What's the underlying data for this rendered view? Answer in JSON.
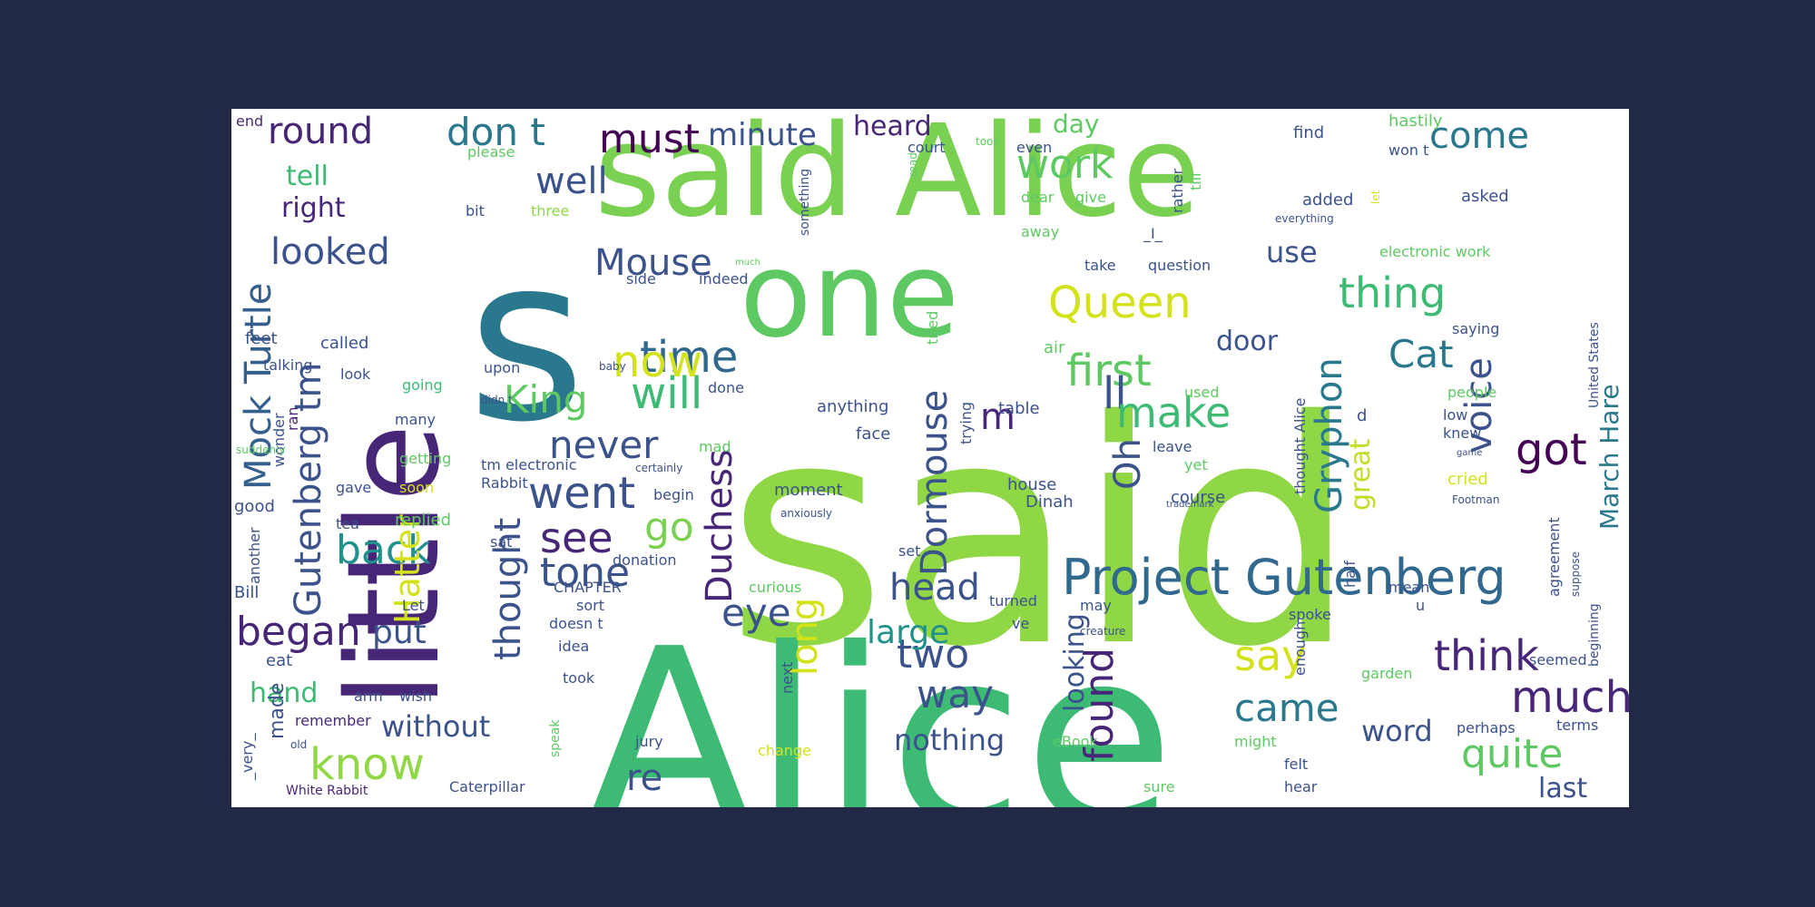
{
  "colors": {
    "background": "#222946",
    "panel": "#ffffff",
    "palette": [
      "#440154",
      "#3b528b",
      "#21918c",
      "#2a788e",
      "#5ec962",
      "#3dbb74",
      "#7ad151",
      "#8fd744",
      "#fde725",
      "#d4e21a"
    ]
  },
  "words": [
    {
      "text": "said",
      "color": "#8fd744"
    },
    {
      "text": "Alice",
      "color": "#3dbb74"
    },
    {
      "text": "said Alice",
      "color": "#7ad151"
    },
    {
      "text": "s",
      "color": "#2a788e"
    },
    {
      "text": "little",
      "color": "#482677"
    },
    {
      "text": "one",
      "color": "#5ec962"
    },
    {
      "text": "Project Gutenberg",
      "color": "#31688e"
    },
    {
      "text": "Gutenberg tm",
      "color": "#3b528b"
    },
    {
      "text": "Mock Turtle",
      "color": "#355f8d"
    },
    {
      "text": "Queen",
      "color": "#d4e21a"
    },
    {
      "text": "thing",
      "color": "#3dbb74"
    },
    {
      "text": "first",
      "color": "#5ec962"
    },
    {
      "text": "time",
      "color": "#31688e"
    },
    {
      "text": "Cat",
      "color": "#2a788e"
    },
    {
      "text": "Mouse",
      "color": "#3b528b"
    },
    {
      "text": "round",
      "color": "#482677"
    },
    {
      "text": "don t",
      "color": "#2a788e"
    },
    {
      "text": "must",
      "color": "#440154"
    },
    {
      "text": "minute",
      "color": "#3b528b"
    },
    {
      "text": "heard",
      "color": "#482677"
    },
    {
      "text": "come",
      "color": "#2a788e"
    },
    {
      "text": "work",
      "color": "#5ec962"
    },
    {
      "text": "day",
      "color": "#5ec962"
    },
    {
      "text": "well",
      "color": "#3b528b"
    },
    {
      "text": "looked",
      "color": "#3b528b"
    },
    {
      "text": "tell",
      "color": "#3dbb74"
    },
    {
      "text": "right",
      "color": "#482677"
    },
    {
      "text": "will",
      "color": "#3dbb74"
    },
    {
      "text": "now",
      "color": "#d4e21a"
    },
    {
      "text": "King",
      "color": "#5ec962"
    },
    {
      "text": "never",
      "color": "#3b528b"
    },
    {
      "text": "went",
      "color": "#3b528b"
    },
    {
      "text": "see",
      "color": "#482677"
    },
    {
      "text": "go",
      "color": "#7ad151"
    },
    {
      "text": "back",
      "color": "#21918c"
    },
    {
      "text": "tone",
      "color": "#3b528b"
    },
    {
      "text": "Duchess",
      "color": "#482677"
    },
    {
      "text": "Dormouse",
      "color": "#3b528b"
    },
    {
      "text": "ll",
      "color": "#3b528b"
    },
    {
      "text": "make",
      "color": "#3dbb74"
    },
    {
      "text": "Oh",
      "color": "#3b528b"
    },
    {
      "text": "m",
      "color": "#482677"
    },
    {
      "text": "Gryphon",
      "color": "#2a788e"
    },
    {
      "text": "voice",
      "color": "#3b528b"
    },
    {
      "text": "got",
      "color": "#440154"
    },
    {
      "text": "March Hare",
      "color": "#2a788e"
    },
    {
      "text": "great",
      "color": "#bddf26"
    },
    {
      "text": "door",
      "color": "#3b528b"
    },
    {
      "text": "use",
      "color": "#3b528b"
    },
    {
      "text": "began",
      "color": "#482677"
    },
    {
      "text": "put",
      "color": "#3b528b"
    },
    {
      "text": "head",
      "color": "#3b528b"
    },
    {
      "text": "eye",
      "color": "#3b528b"
    },
    {
      "text": "thought",
      "color": "#3b528b"
    },
    {
      "text": "Hatter",
      "color": "#d4e21a"
    },
    {
      "text": "two",
      "color": "#3b528b"
    },
    {
      "text": "way",
      "color": "#3b528b"
    },
    {
      "text": "large",
      "color": "#21918c"
    },
    {
      "text": "long",
      "color": "#d4e21a"
    },
    {
      "text": "found",
      "color": "#482677"
    },
    {
      "text": "looking",
      "color": "#3b528b"
    },
    {
      "text": "say",
      "color": "#d4e21a"
    },
    {
      "text": "came",
      "color": "#2a788e"
    },
    {
      "text": "think",
      "color": "#482677"
    },
    {
      "text": "much",
      "color": "#482677"
    },
    {
      "text": "quite",
      "color": "#5ec962"
    },
    {
      "text": "word",
      "color": "#3b528b"
    },
    {
      "text": "last",
      "color": "#3b528b"
    },
    {
      "text": "know",
      "color": "#8fd744"
    },
    {
      "text": "without",
      "color": "#3b528b"
    },
    {
      "text": "re",
      "color": "#3b528b"
    },
    {
      "text": "nothing",
      "color": "#3b528b"
    },
    {
      "text": "hand",
      "color": "#3dbb74"
    },
    {
      "text": "made",
      "color": "#3b528b"
    },
    {
      "text": "end",
      "color": "#482677"
    },
    {
      "text": "please",
      "color": "#5ec962"
    },
    {
      "text": "bit",
      "color": "#3b528b"
    },
    {
      "text": "three",
      "color": "#8fd744"
    },
    {
      "text": "feet",
      "color": "#3b528b"
    },
    {
      "text": "called",
      "color": "#3b528b"
    },
    {
      "text": "look",
      "color": "#3b528b"
    },
    {
      "text": "talking",
      "color": "#3b528b"
    },
    {
      "text": "going",
      "color": "#3dbb74"
    },
    {
      "text": "many",
      "color": "#3b528b"
    },
    {
      "text": "getting",
      "color": "#5ec962"
    },
    {
      "text": "ran",
      "color": "#482677"
    },
    {
      "text": "wonder",
      "color": "#3b528b"
    },
    {
      "text": "suddenly",
      "color": "#5ec962"
    },
    {
      "text": "gave",
      "color": "#3b528b"
    },
    {
      "text": "soon",
      "color": "#d4e21a"
    },
    {
      "text": "good",
      "color": "#3b528b"
    },
    {
      "text": "tea",
      "color": "#3b528b"
    },
    {
      "text": "replied",
      "color": "#5ec962"
    },
    {
      "text": "another",
      "color": "#3b528b"
    },
    {
      "text": "Bill",
      "color": "#3b528b"
    },
    {
      "text": "Let",
      "color": "#3b528b"
    },
    {
      "text": "eat",
      "color": "#3b528b"
    },
    {
      "text": "arm",
      "color": "#3b528b"
    },
    {
      "text": "wish",
      "color": "#3b528b"
    },
    {
      "text": "remember",
      "color": "#482677"
    },
    {
      "text": "old",
      "color": "#3b528b"
    },
    {
      "text": "_very_",
      "color": "#3b528b"
    },
    {
      "text": "White Rabbit",
      "color": "#482677"
    },
    {
      "text": "Caterpillar",
      "color": "#3b528b"
    },
    {
      "text": "jury",
      "color": "#3b528b"
    },
    {
      "text": "speak",
      "color": "#5ec962"
    },
    {
      "text": "change",
      "color": "#d4e21a"
    },
    {
      "text": "took",
      "color": "#3b528b"
    },
    {
      "text": "idea",
      "color": "#3b528b"
    },
    {
      "text": "doesn t",
      "color": "#3b528b"
    },
    {
      "text": "CHAPTER",
      "color": "#3b528b"
    },
    {
      "text": "sort",
      "color": "#3b528b"
    },
    {
      "text": "curious",
      "color": "#5ec962"
    },
    {
      "text": "donation",
      "color": "#3b528b"
    },
    {
      "text": "sat",
      "color": "#3b528b"
    },
    {
      "text": "begin",
      "color": "#3b528b"
    },
    {
      "text": "Rabbit",
      "color": "#3b528b"
    },
    {
      "text": "tm electronic",
      "color": "#3b528b"
    },
    {
      "text": "certainly",
      "color": "#3b528b"
    },
    {
      "text": "mad",
      "color": "#5ec962"
    },
    {
      "text": "done",
      "color": "#3b528b"
    },
    {
      "text": "didn t",
      "color": "#3b528b"
    },
    {
      "text": "upon",
      "color": "#3b528b"
    },
    {
      "text": "baby",
      "color": "#3b528b"
    },
    {
      "text": "side",
      "color": "#3b528b"
    },
    {
      "text": "indeed",
      "color": "#3b528b"
    },
    {
      "text": "much",
      "color": "#5ec962"
    },
    {
      "text": "court",
      "color": "#3b528b"
    },
    {
      "text": "took",
      "color": "#5ec962"
    },
    {
      "text": "something",
      "color": "#3b528b"
    },
    {
      "text": "read",
      "color": "#5ec962"
    },
    {
      "text": "even",
      "color": "#3b528b"
    },
    {
      "text": "dear",
      "color": "#5ec962"
    },
    {
      "text": "give",
      "color": "#5ec962"
    },
    {
      "text": "away",
      "color": "#5ec962"
    },
    {
      "text": "_I_",
      "color": "#3b528b"
    },
    {
      "text": "take",
      "color": "#3b528b"
    },
    {
      "text": "question",
      "color": "#3b528b"
    },
    {
      "text": "rather",
      "color": "#3b528b"
    },
    {
      "text": "till",
      "color": "#5ec962"
    },
    {
      "text": "find",
      "color": "#3b528b"
    },
    {
      "text": "added",
      "color": "#3b528b"
    },
    {
      "text": "everything",
      "color": "#3b528b"
    },
    {
      "text": "hastily",
      "color": "#5ec962"
    },
    {
      "text": "won t",
      "color": "#3b528b"
    },
    {
      "text": "let",
      "color": "#d4e21a"
    },
    {
      "text": "asked",
      "color": "#3b528b"
    },
    {
      "text": "electronic work",
      "color": "#5ec962"
    },
    {
      "text": "United States",
      "color": "#3b528b"
    },
    {
      "text": "saying",
      "color": "#3b528b"
    },
    {
      "text": "people",
      "color": "#5ec962"
    },
    {
      "text": "low",
      "color": "#3b528b"
    },
    {
      "text": "knew",
      "color": "#3b528b"
    },
    {
      "text": "game",
      "color": "#3b528b"
    },
    {
      "text": "cried",
      "color": "#d4e21a"
    },
    {
      "text": "Footman",
      "color": "#3b528b"
    },
    {
      "text": "agreement",
      "color": "#3b528b"
    },
    {
      "text": "suppose",
      "color": "#3b528b"
    },
    {
      "text": "beginning",
      "color": "#3b528b"
    },
    {
      "text": "seemed",
      "color": "#3b528b"
    },
    {
      "text": "perhaps",
      "color": "#3b528b"
    },
    {
      "text": "terms",
      "color": "#3b528b"
    },
    {
      "text": "mean",
      "color": "#3b528b"
    },
    {
      "text": "u",
      "color": "#3b528b"
    },
    {
      "text": "half",
      "color": "#3b528b"
    },
    {
      "text": "spoke",
      "color": "#3b528b"
    },
    {
      "text": "enough",
      "color": "#3b528b"
    },
    {
      "text": "garden",
      "color": "#5ec962"
    },
    {
      "text": "felt",
      "color": "#3b528b"
    },
    {
      "text": "hear",
      "color": "#3b528b"
    },
    {
      "text": "sure",
      "color": "#5ec962"
    },
    {
      "text": "might",
      "color": "#5ec962"
    },
    {
      "text": "eBook",
      "color": "#5ec962"
    },
    {
      "text": "creature",
      "color": "#3b528b"
    },
    {
      "text": "may",
      "color": "#3b528b"
    },
    {
      "text": "turned",
      "color": "#3b528b"
    },
    {
      "text": "ve",
      "color": "#3b528b"
    },
    {
      "text": "set",
      "color": "#3b528b"
    },
    {
      "text": "next",
      "color": "#3b528b"
    },
    {
      "text": "moment",
      "color": "#3b528b"
    },
    {
      "text": "anxiously",
      "color": "#3b528b"
    },
    {
      "text": "house",
      "color": "#3b528b"
    },
    {
      "text": "Dinah",
      "color": "#3b528b"
    },
    {
      "text": "course",
      "color": "#3b528b"
    },
    {
      "text": "yet",
      "color": "#5ec962"
    },
    {
      "text": "trademark",
      "color": "#3b528b"
    },
    {
      "text": "thought Alice",
      "color": "#3b528b"
    },
    {
      "text": "leave",
      "color": "#3b528b"
    },
    {
      "text": "used",
      "color": "#5ec962"
    },
    {
      "text": "air",
      "color": "#5ec962"
    },
    {
      "text": "table",
      "color": "#3b528b"
    },
    {
      "text": "anything",
      "color": "#3b528b"
    },
    {
      "text": "face",
      "color": "#3b528b"
    },
    {
      "text": "trying",
      "color": "#3b528b"
    },
    {
      "text": "tried",
      "color": "#5ec962"
    },
    {
      "text": "d",
      "color": "#3b528b"
    }
  ]
}
